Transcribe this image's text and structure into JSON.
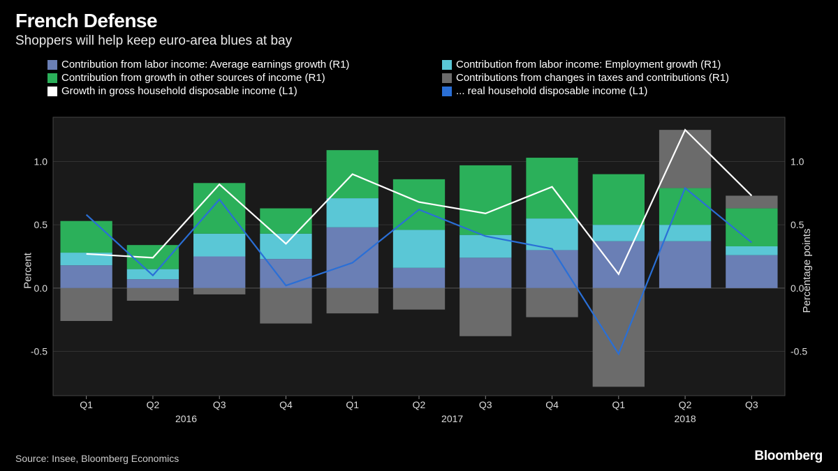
{
  "header": {
    "title": "French Defense",
    "subtitle": "Shoppers will help keep euro-area blues at bay"
  },
  "legend": [
    {
      "label": "Contribution from labor income: Average earnings growth (R1)",
      "color": "#6a7fb5",
      "type": "box"
    },
    {
      "label": "Contribution from labor income: Employment growth (R1)",
      "color": "#5ac7d6",
      "type": "box"
    },
    {
      "label": "Contribution from growth in other sources of income (R1)",
      "color": "#2bb05a",
      "type": "box"
    },
    {
      "label": "Contributions from changes in taxes and contributions (R1)",
      "color": "#6b6b6b",
      "type": "box"
    },
    {
      "label": "Growth in gross household disposable income (L1)",
      "color": "#ffffff",
      "type": "box"
    },
    {
      "label": "... real household disposable income (L1)",
      "color": "#2a6fd6",
      "type": "box"
    }
  ],
  "chart": {
    "type": "stacked-bar-with-lines",
    "background_color": "#000000",
    "plot_background": "#1a1a1a",
    "grid_color": "#333333",
    "text_color": "#dddddd",
    "font_size_axis": 14,
    "ylim": [
      -0.85,
      1.35
    ],
    "yticks": [
      -0.5,
      0.0,
      0.5,
      1.0
    ],
    "ylabel_left": "Percent",
    "ylabel_right": "Percentage points",
    "categories": [
      "Q1",
      "Q2",
      "Q3",
      "Q4",
      "Q1",
      "Q2",
      "Q3",
      "Q4",
      "Q1",
      "Q2",
      "Q3"
    ],
    "year_groups": [
      {
        "label": "2016",
        "start": 0,
        "end": 3
      },
      {
        "label": "2017",
        "start": 4,
        "end": 7
      },
      {
        "label": "2018",
        "start": 8,
        "end": 10
      }
    ],
    "bar_width_ratio": 0.78,
    "series_stacked": [
      {
        "name": "earnings",
        "color": "#6a7fb5",
        "values": [
          0.18,
          0.07,
          0.25,
          0.23,
          0.48,
          0.16,
          0.24,
          0.3,
          0.37,
          0.37,
          0.26
        ]
      },
      {
        "name": "employment",
        "color": "#5ac7d6",
        "values": [
          0.1,
          0.08,
          0.18,
          0.2,
          0.23,
          0.3,
          0.18,
          0.25,
          0.13,
          0.13,
          0.07
        ]
      },
      {
        "name": "other_income",
        "color": "#2bb05a",
        "values": [
          0.25,
          0.19,
          0.4,
          0.2,
          0.38,
          0.4,
          0.55,
          0.48,
          0.4,
          0.29,
          0.3
        ]
      },
      {
        "name": "taxes_pos",
        "color": "#6b6b6b",
        "values": [
          0.0,
          0.0,
          0.0,
          0.0,
          0.0,
          0.0,
          0.0,
          0.0,
          0.0,
          0.46,
          0.1
        ]
      },
      {
        "name": "taxes_neg",
        "color": "#6b6b6b",
        "values": [
          -0.26,
          -0.1,
          -0.05,
          -0.28,
          -0.2,
          -0.17,
          -0.38,
          -0.23,
          -0.78,
          0.0,
          0.0
        ]
      }
    ],
    "series_lines": [
      {
        "name": "gross_income",
        "color": "#ffffff",
        "width": 2.2,
        "values": [
          0.27,
          0.24,
          0.82,
          0.35,
          0.9,
          0.68,
          0.59,
          0.8,
          0.11,
          1.25,
          0.73
        ]
      },
      {
        "name": "real_income",
        "color": "#2a6fd6",
        "width": 2.2,
        "values": [
          0.58,
          0.1,
          0.7,
          0.02,
          0.2,
          0.62,
          0.41,
          0.31,
          -0.52,
          0.79,
          0.36
        ]
      }
    ]
  },
  "footer": {
    "source": "Source: Insee, Bloomberg Economics",
    "logo": "Bloomberg"
  }
}
